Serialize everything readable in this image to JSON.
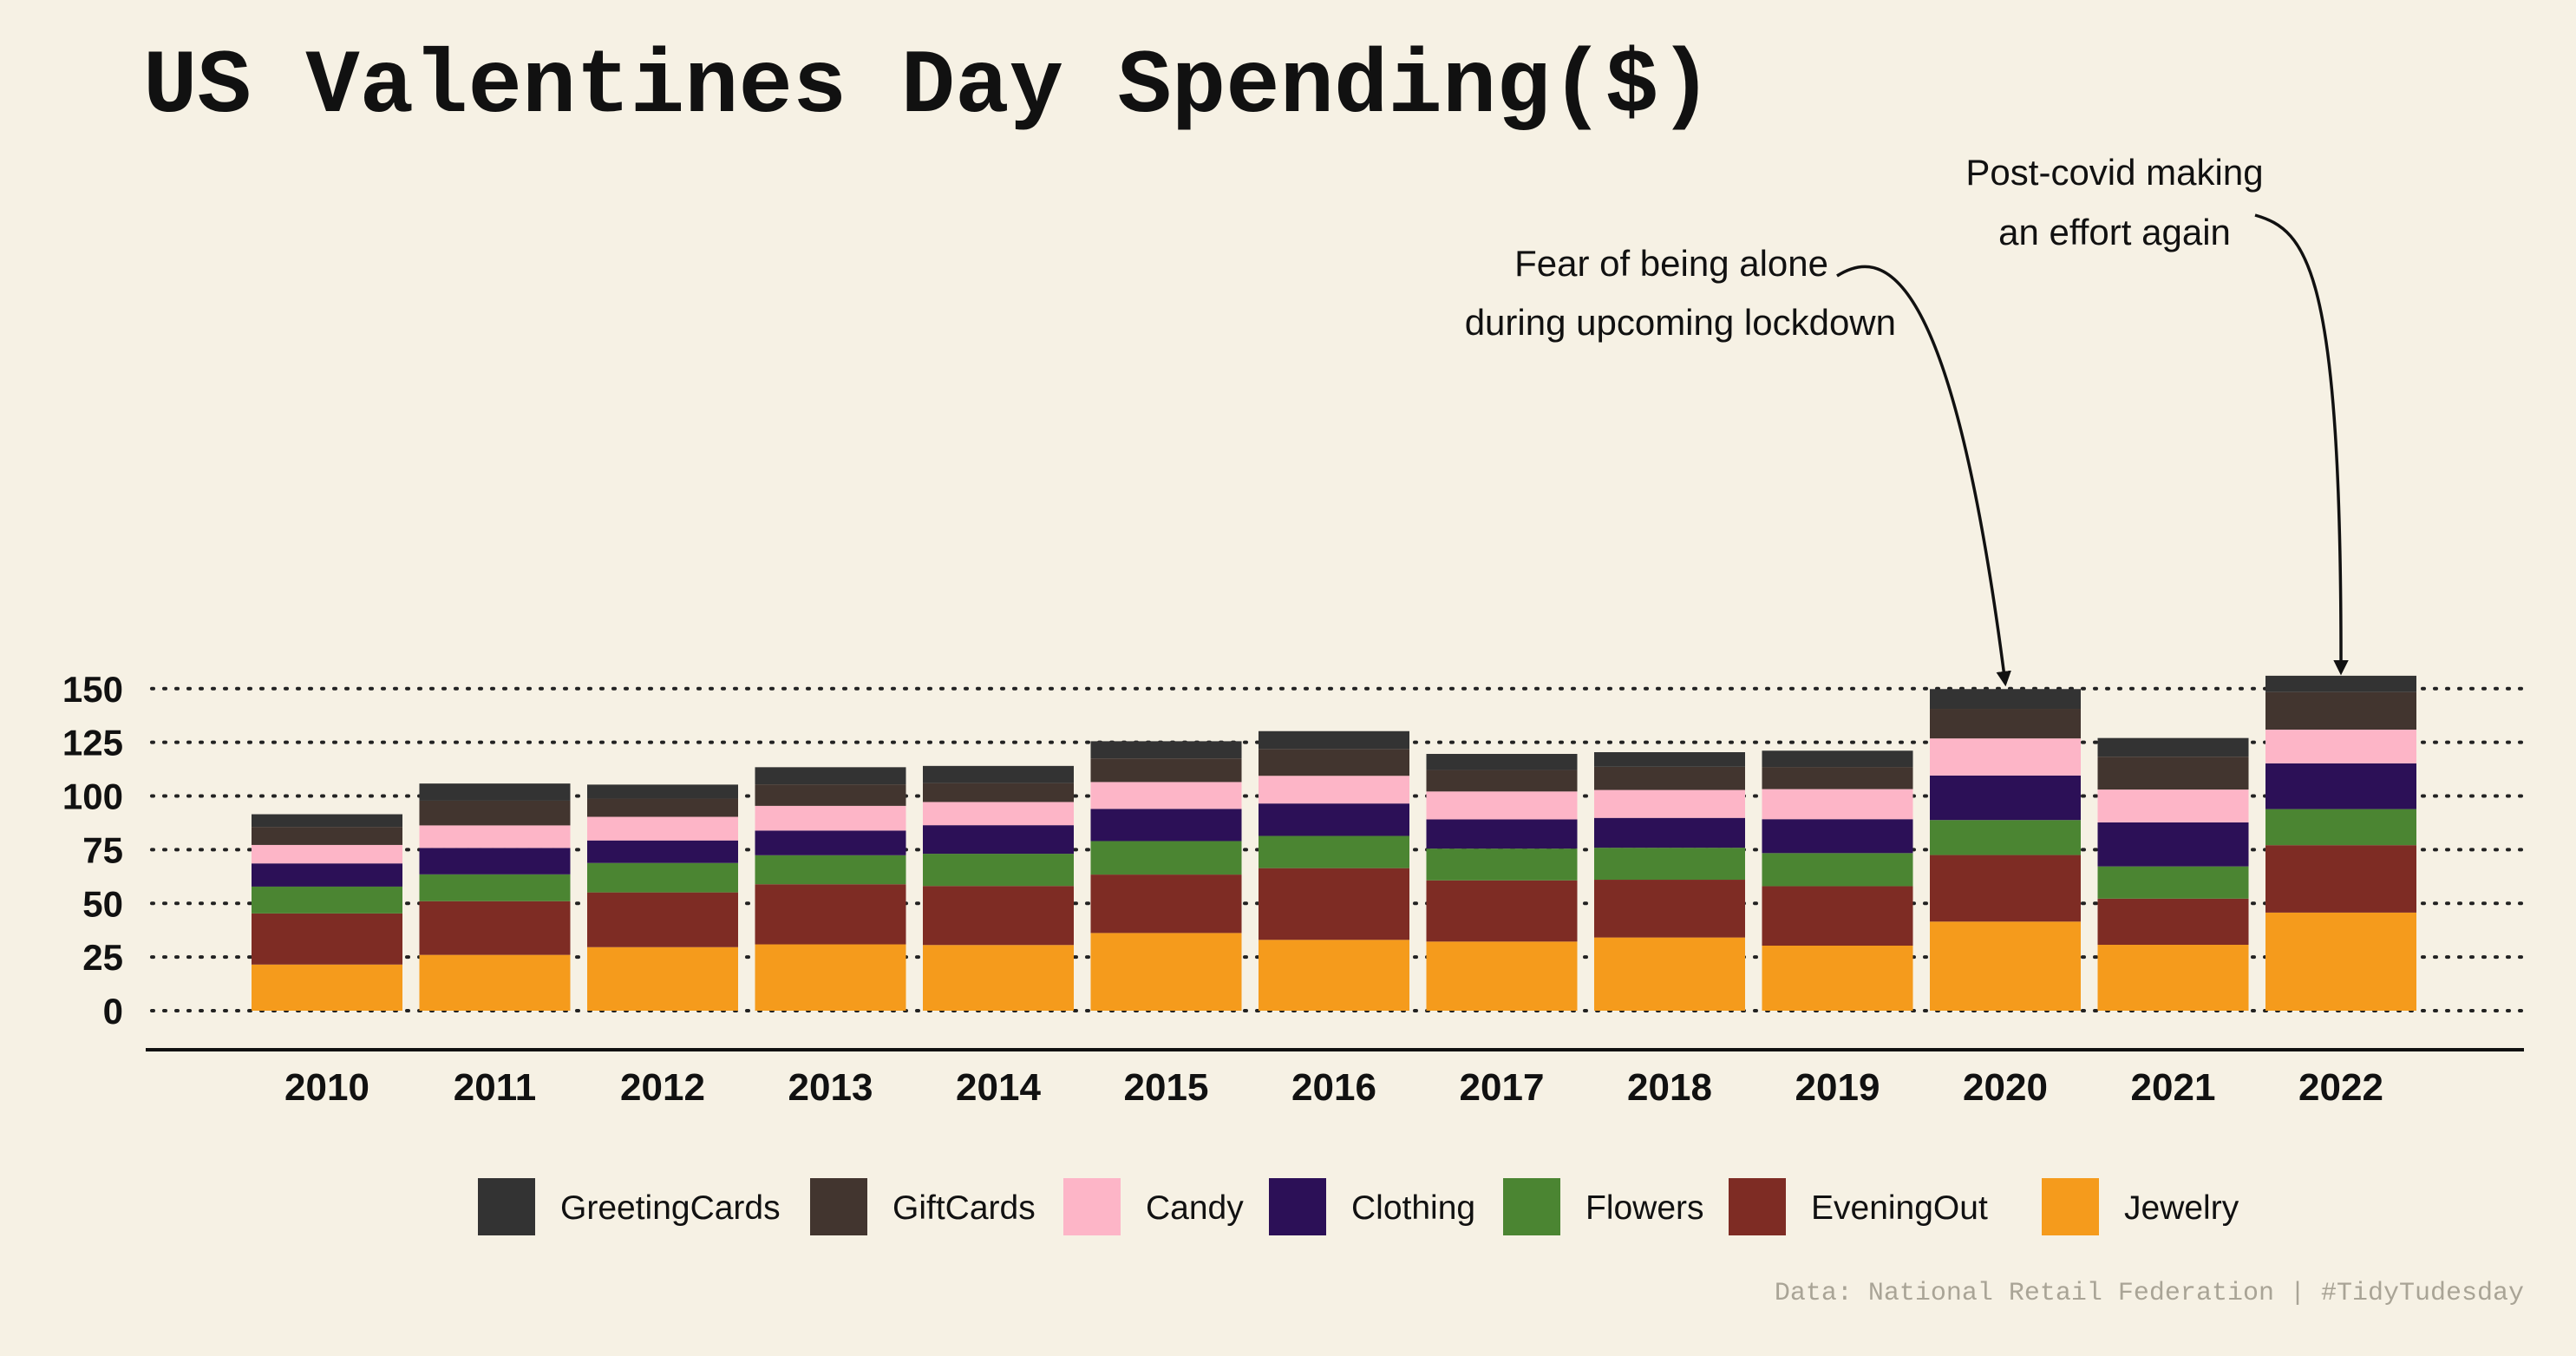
{
  "chart_data": {
    "type": "bar",
    "stacked": true,
    "title": "US Valentines Day Spending($)",
    "caption": "Data: National Retail Federation | #TidyTudesday",
    "categories": [
      "2010",
      "2011",
      "2012",
      "2013",
      "2014",
      "2015",
      "2016",
      "2017",
      "2018",
      "2019",
      "2020",
      "2021",
      "2022"
    ],
    "ylim": [
      0,
      160
    ],
    "yticks": [
      0,
      25,
      50,
      75,
      100,
      125,
      150
    ],
    "grid": "horizontal dotted",
    "legend_position": "bottom",
    "series": [
      {
        "name": "Jewelry",
        "color": "#f59b1c",
        "values": [
          21.5,
          26.0,
          29.6,
          30.9,
          30.6,
          36.2,
          33.0,
          32.2,
          34.1,
          30.3,
          41.5,
          30.7,
          45.7
        ]
      },
      {
        "name": "EveningOut",
        "color": "#7e2c24",
        "values": [
          23.8,
          25.0,
          25.5,
          28.0,
          27.5,
          27.2,
          33.4,
          28.5,
          26.9,
          27.7,
          31.0,
          21.5,
          31.4
        ]
      },
      {
        "name": "Flowers",
        "color": "#4b8532",
        "values": [
          12.5,
          12.5,
          13.7,
          13.5,
          15.0,
          15.6,
          15.0,
          14.8,
          14.9,
          15.4,
          16.3,
          15.0,
          16.8
        ]
      },
      {
        "name": "Clothing",
        "color": "#2c1057",
        "values": [
          10.8,
          12.3,
          10.5,
          11.5,
          13.3,
          15.0,
          15.1,
          13.6,
          13.9,
          15.8,
          20.7,
          20.5,
          21.3
        ]
      },
      {
        "name": "Candy",
        "color": "#fdb5c7",
        "values": [
          8.6,
          10.5,
          11.0,
          11.5,
          10.8,
          12.5,
          12.9,
          13.0,
          13.0,
          14.0,
          17.3,
          15.3,
          15.7
        ]
      },
      {
        "name": "GiftCards",
        "color": "#42352f",
        "values": [
          8.4,
          11.5,
          8.5,
          10.0,
          8.8,
          11.0,
          12.5,
          10.0,
          10.8,
          10.3,
          13.8,
          15.3,
          17.5
        ]
      },
      {
        "name": "GreetingCards",
        "color": "#333333",
        "values": [
          5.9,
          8.0,
          6.5,
          8.0,
          8.0,
          8.0,
          8.3,
          7.5,
          6.8,
          7.6,
          9.2,
          8.7,
          7.6
        ]
      }
    ],
    "annotations": [
      {
        "lines": [
          "Fear of being alone",
          "during upcoming lockdown"
        ],
        "target_category": "2020",
        "target_value": 150
      },
      {
        "lines": [
          "Post-covid making",
          "an effort again"
        ],
        "target_category": "2022",
        "target_value": 156
      }
    ]
  }
}
